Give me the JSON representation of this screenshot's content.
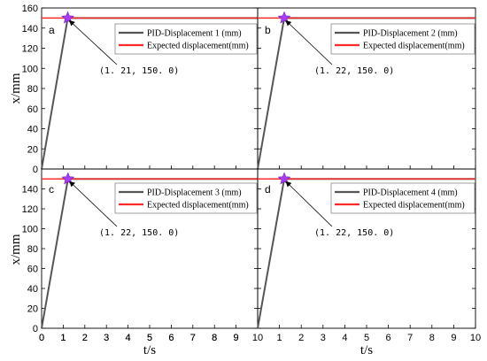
{
  "chart_data": [
    {
      "type": "line",
      "panel": "a",
      "xlim": [
        0,
        10
      ],
      "ylim": [
        0,
        160
      ],
      "x_ticks": [
        0,
        1,
        2,
        3,
        4,
        5,
        6,
        7,
        8,
        9,
        10
      ],
      "y_ticks": [
        0,
        20,
        40,
        60,
        80,
        100,
        120,
        140,
        160
      ],
      "x_tick_labels": [
        "0",
        "1",
        "2",
        "3",
        "4",
        "5",
        "6",
        "7",
        "8",
        "9"
      ],
      "y_tick_labels": [
        "0",
        "20",
        "40",
        "60",
        "80",
        "100",
        "120",
        "140",
        "160"
      ],
      "xlabel": "",
      "ylabel": "x/mm",
      "legend_position": "top-right",
      "series": [
        {
          "name": "PID-Displacement 1 (mm)",
          "color": "#555555",
          "x": [
            0,
            1.21,
            10
          ],
          "y": [
            0,
            150.0,
            150.0
          ]
        },
        {
          "name": "Expected displacement(mm)",
          "color": "#ff2a2a",
          "x": [
            0,
            10
          ],
          "y": [
            150.0,
            150.0
          ]
        }
      ],
      "marker": {
        "x": 1.21,
        "y": 150.0,
        "color": "#a83cf0"
      },
      "annotation": "(1. 21, 150. 0)"
    },
    {
      "type": "line",
      "panel": "b",
      "xlim": [
        0,
        10
      ],
      "ylim": [
        0,
        160
      ],
      "x_ticks": [
        0,
        1,
        2,
        3,
        4,
        5,
        6,
        7,
        8,
        9,
        10
      ],
      "y_ticks": [
        0,
        20,
        40,
        60,
        80,
        100,
        120,
        140,
        160
      ],
      "x_tick_labels": [],
      "y_tick_labels": [],
      "xlabel": "",
      "ylabel": "",
      "legend_position": "top-right",
      "series": [
        {
          "name": "PID-Displacement 2 (mm)",
          "color": "#555555",
          "x": [
            0,
            1.22,
            10
          ],
          "y": [
            0,
            150.0,
            150.0
          ]
        },
        {
          "name": "Expected displacement(mm)",
          "color": "#ff2a2a",
          "x": [
            0,
            10
          ],
          "y": [
            150.0,
            150.0
          ]
        }
      ],
      "marker": {
        "x": 1.22,
        "y": 150.0,
        "color": "#a83cf0"
      },
      "annotation": "(1. 22, 150. 0)"
    },
    {
      "type": "line",
      "panel": "c",
      "xlim": [
        0,
        10
      ],
      "ylim": [
        0,
        160
      ],
      "x_ticks": [
        0,
        1,
        2,
        3,
        4,
        5,
        6,
        7,
        8,
        9,
        10
      ],
      "y_ticks": [
        0,
        20,
        40,
        60,
        80,
        100,
        120,
        140,
        160
      ],
      "x_tick_labels": [
        "0",
        "1",
        "2",
        "3",
        "4",
        "5",
        "6",
        "7",
        "8",
        "9",
        "10"
      ],
      "y_tick_labels": [
        "0",
        "20",
        "40",
        "60",
        "80",
        "100",
        "120",
        "140"
      ],
      "xlabel": "t/s",
      "ylabel": "x/mm",
      "legend_position": "top-right",
      "series": [
        {
          "name": "PID-Displacement 3 (mm)",
          "color": "#555555",
          "x": [
            0,
            1.22,
            10
          ],
          "y": [
            0,
            150.0,
            150.0
          ]
        },
        {
          "name": "Expected displacement(mm)",
          "color": "#ff2a2a",
          "x": [
            0,
            10
          ],
          "y": [
            150.0,
            150.0
          ]
        }
      ],
      "marker": {
        "x": 1.22,
        "y": 150.0,
        "color": "#a83cf0"
      },
      "annotation": "(1. 22, 150. 0)"
    },
    {
      "type": "line",
      "panel": "d",
      "xlim": [
        0,
        10
      ],
      "ylim": [
        0,
        160
      ],
      "x_ticks": [
        0,
        1,
        2,
        3,
        4,
        5,
        6,
        7,
        8,
        9,
        10
      ],
      "y_ticks": [
        0,
        20,
        40,
        60,
        80,
        100,
        120,
        140,
        160
      ],
      "x_tick_labels": [
        "1",
        "2",
        "3",
        "4",
        "5",
        "6",
        "7",
        "8",
        "9",
        "10"
      ],
      "y_tick_labels": [],
      "xlabel": "t/s",
      "ylabel": "",
      "legend_position": "top-right",
      "series": [
        {
          "name": "PID-Displacement 4 (mm)",
          "color": "#555555",
          "x": [
            0,
            1.22,
            10
          ],
          "y": [
            0,
            150.0,
            150.0
          ]
        },
        {
          "name": "Expected displacement(mm)",
          "color": "#ff2a2a",
          "x": [
            0,
            10
          ],
          "y": [
            150.0,
            150.0
          ]
        }
      ],
      "marker": {
        "x": 1.22,
        "y": 150.0,
        "color": "#a83cf0"
      },
      "annotation": "(1. 22, 150. 0)"
    }
  ]
}
